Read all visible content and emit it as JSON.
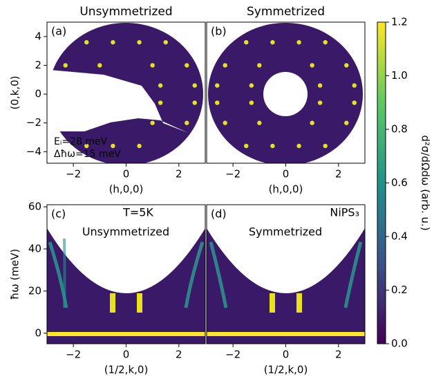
{
  "chart_data": [
    {
      "type": "heatmap",
      "title": "Unsymmetrized",
      "panel_label": "(a)",
      "xlabel": "(h,0,0)",
      "ylabel": "(0,k,0)",
      "annotations": [
        "Eᵢ=28 meV",
        "Δħω=15 meV"
      ],
      "xlim": [
        -3,
        3
      ],
      "ylim": [
        -4.8,
        5
      ],
      "xticks": [
        {
          "value": -2,
          "label": "−2"
        },
        0,
        2
      ],
      "yticks": [
        {
          "value": -4,
          "label": "−4"
        },
        {
          "value": -2,
          "label": "−2"
        },
        0,
        2,
        4
      ],
      "spots": {
        "x": [
          -1.5,
          -0.5,
          0.5,
          1.5,
          -2.3,
          -1.0,
          1.0,
          2.3,
          1.3,
          2.6,
          1.3,
          2.6,
          1.0,
          2.3,
          -1.5,
          -0.5,
          0.5
        ],
        "y": [
          3.6,
          3.6,
          3.6,
          3.6,
          2.0,
          2.0,
          2.0,
          2.0,
          0.6,
          0.6,
          -0.6,
          -0.6,
          -2.0,
          -2.0,
          -3.6,
          -3.6,
          -3.6
        ]
      }
    },
    {
      "type": "heatmap",
      "title": "Symmetrized",
      "panel_label": "(b)",
      "xlabel": "(h,0,0)",
      "xlim": [
        -3,
        3
      ],
      "ylim": [
        -4.8,
        5
      ],
      "xticks": [
        {
          "value": -2,
          "label": "−2"
        },
        0,
        2
      ],
      "spots": {
        "x": [
          -1.5,
          -0.5,
          0.5,
          1.5,
          -2.3,
          -1.0,
          1.0,
          2.3,
          -2.6,
          -1.3,
          1.3,
          2.6,
          -2.6,
          -1.3,
          1.3,
          2.6,
          -2.3,
          -1.0,
          1.0,
          2.3,
          -1.5,
          -0.5,
          0.5,
          1.5
        ],
        "y": [
          3.6,
          3.6,
          3.6,
          3.6,
          2.0,
          2.0,
          2.0,
          2.0,
          0.6,
          0.6,
          0.6,
          0.6,
          -0.6,
          -0.6,
          -0.6,
          -0.6,
          -2.0,
          -2.0,
          -2.0,
          -2.0,
          -3.6,
          -3.6,
          -3.6,
          -3.6
        ]
      }
    },
    {
      "type": "heatmap",
      "panel_label": "(c)",
      "xlabel": "(1/2,k,0)",
      "ylabel": "ħω (meV)",
      "annotations": [
        "T=5K",
        "Unsymmetrized"
      ],
      "xlim": [
        -3,
        3
      ],
      "ylim": [
        -5,
        61
      ],
      "xticks": [
        {
          "value": -2,
          "label": "−2"
        },
        0,
        2
      ],
      "yticks": [
        0,
        20,
        40,
        60
      ]
    },
    {
      "type": "heatmap",
      "panel_label": "(d)",
      "xlabel": "(1/2,k,0)",
      "annotations": [
        "NiPS₃",
        "Symmetrized"
      ],
      "xlim": [
        -3,
        3
      ],
      "ylim": [
        -5,
        61
      ],
      "xticks": [
        {
          "value": -2,
          "label": "−2"
        },
        0,
        2
      ]
    },
    {
      "type": "colorbar",
      "label": "d²σ/dΩdω (arb. u.)",
      "colors": [
        "#440154",
        "#3b528b",
        "#21918c",
        "#5ec962",
        "#fde725"
      ],
      "ylim": [
        0,
        1.2
      ],
      "yticks": [
        {
          "value": 0,
          "label": "0.0"
        },
        0.2,
        0.4,
        0.6,
        0.8,
        {
          "value": 1,
          "label": "1.0"
        },
        1.2
      ]
    }
  ]
}
